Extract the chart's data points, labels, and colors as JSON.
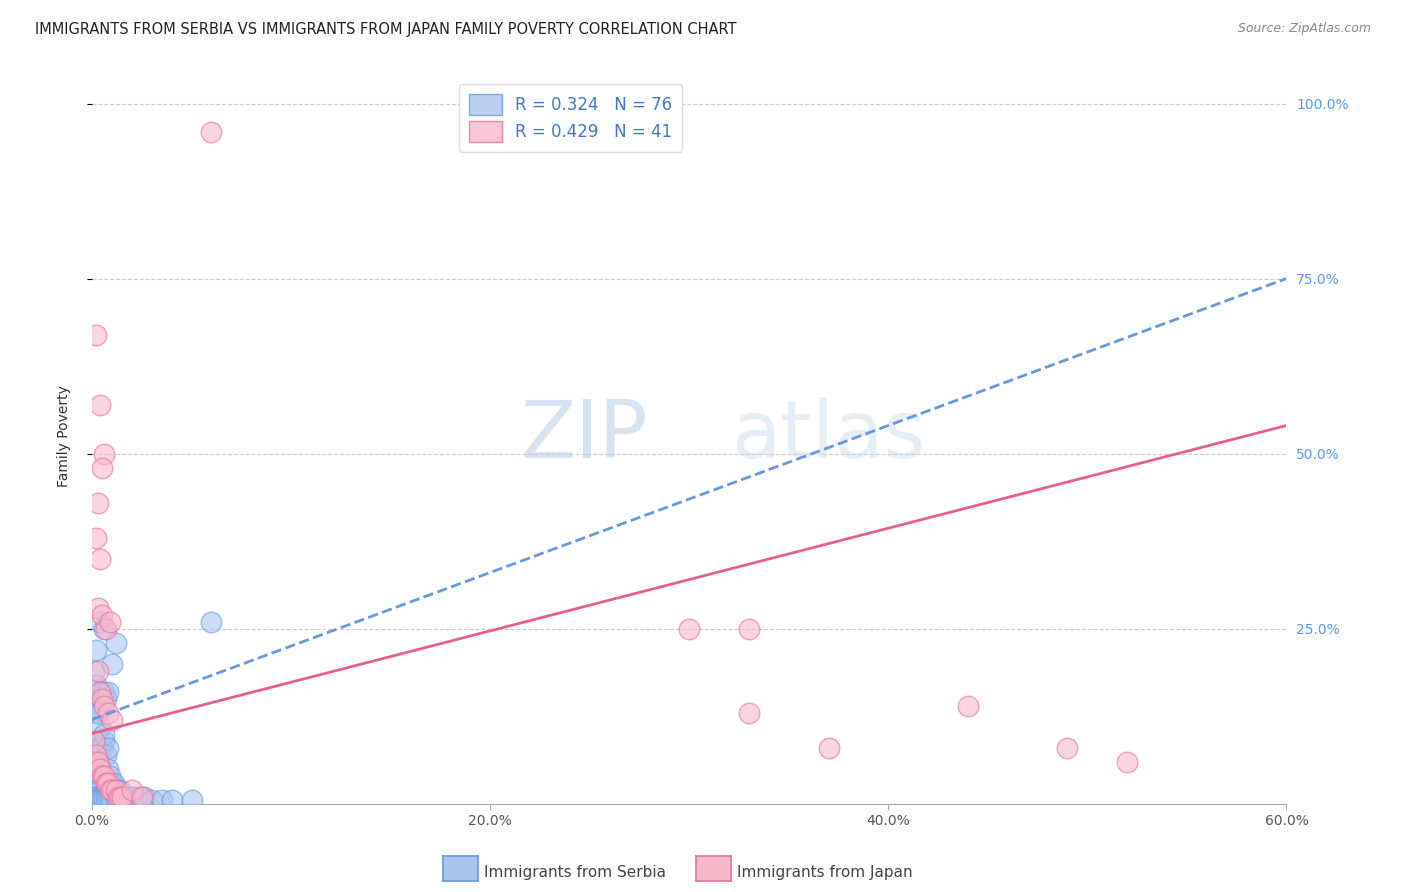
{
  "title": "IMMIGRANTS FROM SERBIA VS IMMIGRANTS FROM JAPAN FAMILY POVERTY CORRELATION CHART",
  "source": "Source: ZipAtlas.com",
  "ylabel": "Family Poverty",
  "xlim": [
    0.0,
    0.6
  ],
  "ylim": [
    0.0,
    1.05
  ],
  "xtick_labels": [
    "0.0%",
    "20.0%",
    "40.0%",
    "60.0%"
  ],
  "xtick_vals": [
    0.0,
    0.2,
    0.4,
    0.6
  ],
  "ytick_labels": [
    "25.0%",
    "50.0%",
    "75.0%",
    "100.0%"
  ],
  "ytick_vals": [
    0.25,
    0.5,
    0.75,
    1.0
  ],
  "serbia_color": "#aac4f0",
  "serbia_edge": "#6699dd",
  "japan_color": "#f8b8cc",
  "japan_edge": "#e87099",
  "serbia_R": 0.324,
  "serbia_N": 76,
  "japan_R": 0.429,
  "japan_N": 41,
  "serbia_points": [
    [
      0.001,
      0.19
    ],
    [
      0.002,
      0.17
    ],
    [
      0.003,
      0.15
    ],
    [
      0.001,
      0.14
    ],
    [
      0.002,
      0.13
    ],
    [
      0.001,
      0.09
    ],
    [
      0.002,
      0.08
    ],
    [
      0.003,
      0.08
    ],
    [
      0.002,
      0.06
    ],
    [
      0.003,
      0.05
    ],
    [
      0.001,
      0.04
    ],
    [
      0.002,
      0.03
    ],
    [
      0.003,
      0.03
    ],
    [
      0.001,
      0.02
    ],
    [
      0.002,
      0.02
    ],
    [
      0.003,
      0.02
    ],
    [
      0.004,
      0.02
    ],
    [
      0.001,
      0.01
    ],
    [
      0.002,
      0.01
    ],
    [
      0.003,
      0.01
    ],
    [
      0.004,
      0.01
    ],
    [
      0.005,
      0.01
    ],
    [
      0.006,
      0.01
    ],
    [
      0.007,
      0.01
    ],
    [
      0.001,
      0.005
    ],
    [
      0.002,
      0.005
    ],
    [
      0.003,
      0.005
    ],
    [
      0.004,
      0.005
    ],
    [
      0.005,
      0.005
    ],
    [
      0.006,
      0.005
    ],
    [
      0.007,
      0.005
    ],
    [
      0.008,
      0.005
    ],
    [
      0.009,
      0.005
    ],
    [
      0.01,
      0.005
    ],
    [
      0.012,
      0.005
    ],
    [
      0.013,
      0.005
    ],
    [
      0.015,
      0.005
    ],
    [
      0.016,
      0.005
    ],
    [
      0.018,
      0.005
    ],
    [
      0.02,
      0.005
    ],
    [
      0.022,
      0.005
    ],
    [
      0.025,
      0.005
    ],
    [
      0.004,
      0.26
    ],
    [
      0.006,
      0.25
    ],
    [
      0.004,
      0.16
    ],
    [
      0.006,
      0.16
    ],
    [
      0.007,
      0.15
    ],
    [
      0.008,
      0.16
    ],
    [
      0.01,
      0.2
    ],
    [
      0.012,
      0.23
    ],
    [
      0.005,
      0.08
    ],
    [
      0.006,
      0.09
    ],
    [
      0.007,
      0.07
    ],
    [
      0.008,
      0.05
    ],
    [
      0.009,
      0.04
    ],
    [
      0.01,
      0.03
    ],
    [
      0.011,
      0.03
    ],
    [
      0.012,
      0.02
    ],
    [
      0.013,
      0.02
    ],
    [
      0.014,
      0.02
    ],
    [
      0.015,
      0.01
    ],
    [
      0.016,
      0.01
    ],
    [
      0.017,
      0.01
    ],
    [
      0.018,
      0.01
    ],
    [
      0.02,
      0.01
    ],
    [
      0.022,
      0.01
    ],
    [
      0.024,
      0.01
    ],
    [
      0.026,
      0.01
    ],
    [
      0.06,
      0.26
    ],
    [
      0.003,
      0.13
    ],
    [
      0.004,
      0.11
    ],
    [
      0.006,
      0.1
    ],
    [
      0.002,
      0.22
    ],
    [
      0.008,
      0.08
    ],
    [
      0.03,
      0.005
    ],
    [
      0.035,
      0.005
    ],
    [
      0.04,
      0.005
    ],
    [
      0.05,
      0.005
    ]
  ],
  "japan_points": [
    [
      0.002,
      0.67
    ],
    [
      0.004,
      0.57
    ],
    [
      0.006,
      0.5
    ],
    [
      0.003,
      0.43
    ],
    [
      0.005,
      0.48
    ],
    [
      0.002,
      0.38
    ],
    [
      0.004,
      0.35
    ],
    [
      0.003,
      0.28
    ],
    [
      0.005,
      0.27
    ],
    [
      0.007,
      0.25
    ],
    [
      0.009,
      0.26
    ],
    [
      0.003,
      0.19
    ],
    [
      0.004,
      0.16
    ],
    [
      0.005,
      0.15
    ],
    [
      0.006,
      0.14
    ],
    [
      0.008,
      0.13
    ],
    [
      0.01,
      0.12
    ],
    [
      0.001,
      0.09
    ],
    [
      0.002,
      0.07
    ],
    [
      0.003,
      0.06
    ],
    [
      0.004,
      0.05
    ],
    [
      0.005,
      0.04
    ],
    [
      0.006,
      0.04
    ],
    [
      0.007,
      0.03
    ],
    [
      0.008,
      0.03
    ],
    [
      0.009,
      0.02
    ],
    [
      0.01,
      0.02
    ],
    [
      0.012,
      0.02
    ],
    [
      0.013,
      0.01
    ],
    [
      0.014,
      0.01
    ],
    [
      0.015,
      0.01
    ],
    [
      0.02,
      0.02
    ],
    [
      0.025,
      0.01
    ],
    [
      0.06,
      0.96
    ],
    [
      0.3,
      0.25
    ],
    [
      0.33,
      0.25
    ],
    [
      0.37,
      0.08
    ],
    [
      0.44,
      0.14
    ],
    [
      0.33,
      0.13
    ],
    [
      0.49,
      0.08
    ],
    [
      0.52,
      0.06
    ]
  ],
  "serbia_trend_x": [
    0.0,
    0.6
  ],
  "serbia_trend_y": [
    0.12,
    0.75
  ],
  "japan_trend_x": [
    0.0,
    0.6
  ],
  "japan_trend_y": [
    0.1,
    0.54
  ],
  "watermark_zip": "ZIP",
  "watermark_atlas": "atlas",
  "background_color": "#ffffff",
  "grid_color": "#cccccc",
  "legend_serbia_label": "R = 0.324   N = 76",
  "legend_japan_label": "R = 0.429   N = 41",
  "bottom_label_serbia": "Immigrants from Serbia",
  "bottom_label_japan": "Immigrants from Japan"
}
